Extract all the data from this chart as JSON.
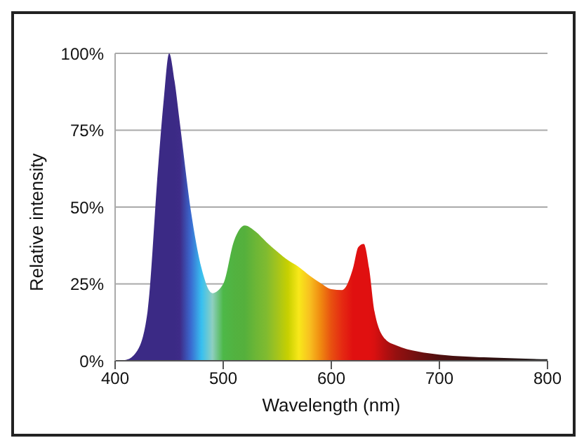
{
  "chart_data": {
    "type": "area",
    "xlabel": "Wavelength (nm)",
    "ylabel": "Relative intensity",
    "x": [
      400,
      410,
      420,
      430,
      440,
      445,
      450,
      455,
      460,
      470,
      480,
      490,
      500,
      510,
      520,
      530,
      540,
      550,
      560,
      570,
      580,
      590,
      600,
      610,
      620,
      625,
      630,
      635,
      640,
      650,
      660,
      680,
      700,
      750,
      800
    ],
    "series": [
      {
        "values": [
          0,
          0.3,
          3,
          16,
          64,
          85,
          100,
          91,
          77,
          49,
          30,
          22,
          25,
          39,
          44,
          42,
          38.6,
          35.5,
          32.7,
          30.5,
          27.7,
          25.3,
          23.3,
          23,
          30,
          37,
          38,
          30,
          16,
          7,
          5,
          3,
          2,
          1,
          0.5
        ],
        "colors": [
          "#3b2a85",
          "#3b2a85",
          "#3b2a85",
          "#3b2a85",
          "#3b2a85",
          "#3b2a85",
          "#3b2a85",
          "#3b2a85",
          "#3e2b88",
          "#3a6ad0",
          "#38c0f0",
          "#8ecfc0",
          "#4db848",
          "#52b240",
          "#55b03c",
          "#6cb636",
          "#80bb30",
          "#a4c41c",
          "#c8d000",
          "#f8e81a",
          "#f8c020",
          "#f08a10",
          "#e85010",
          "#e52a12",
          "#e01010",
          "#e01010",
          "#e01010",
          "#e01010",
          "#d81010",
          "#b50f10",
          "#951010",
          "#701010",
          "#501010",
          "#301010",
          "#202020"
        ]
      }
    ],
    "xlim": [
      400,
      800
    ],
    "xticks": [
      400,
      500,
      600,
      700,
      800
    ],
    "ylim": [
      0,
      100
    ],
    "yticks": [
      {
        "value": 0,
        "label": "0%"
      },
      {
        "value": 25,
        "label": "25%"
      },
      {
        "value": 50,
        "label": "50%"
      },
      {
        "value": 75,
        "label": "75%"
      },
      {
        "value": 100,
        "label": "100%"
      }
    ],
    "grid": "y",
    "legend": false
  }
}
